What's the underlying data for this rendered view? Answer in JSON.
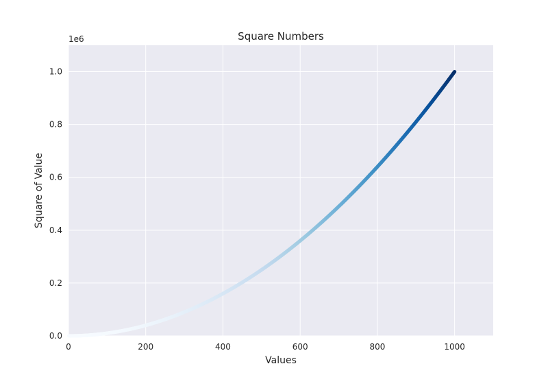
{
  "chart_data": {
    "type": "scatter",
    "title": "Square Numbers",
    "xlabel": "Values",
    "ylabel": "Square of Value",
    "xlim": [
      0,
      1100
    ],
    "ylim": [
      0,
      1100000
    ],
    "x_ticks": [
      0,
      200,
      400,
      600,
      800,
      1000
    ],
    "x_tick_labels": [
      "0",
      "200",
      "400",
      "600",
      "800",
      "1000"
    ],
    "y_ticks": [
      0,
      200000,
      400000,
      600000,
      800000,
      1000000
    ],
    "y_tick_labels": [
      "0.0",
      "0.2",
      "0.4",
      "0.6",
      "0.8",
      "1.0"
    ],
    "y_offset_label": "1e6",
    "grid": true,
    "colormap": "Blues",
    "series": [
      {
        "x_start": 1,
        "x_end": 1000,
        "x_step": 1,
        "y_function": "x^2",
        "color_by": "y"
      }
    ],
    "background_color": "#eaeaf2",
    "grid_color": "#ffffff",
    "colormap_stops": [
      "#f7fbff",
      "#deebf7",
      "#c6dbef",
      "#9ecae1",
      "#6baed6",
      "#4292c6",
      "#2171b5",
      "#08519c",
      "#08306b"
    ]
  }
}
